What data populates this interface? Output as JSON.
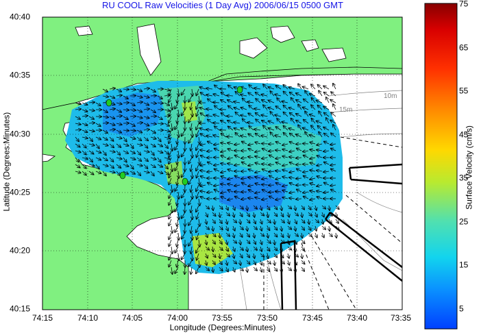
{
  "title": "RU COOL Raw Velocities (1 Day Avg) 2006/06/15 0500 GMT",
  "x_axis": {
    "label": "Longitude (Degrees:Minutes)",
    "ticks": [
      "74:15",
      "74:10",
      "74:05",
      "74:00",
      "73:55",
      "73:50",
      "73:45",
      "73:40",
      "73:35"
    ]
  },
  "y_axis": {
    "label": "Latitude (Degrees:Minutes)",
    "ticks": [
      "40:40",
      "40:35",
      "40:30",
      "40:25",
      "40:20",
      "40:15"
    ]
  },
  "colorbar": {
    "label": "Surface Velocity (cm/s)",
    "ticks": [
      "75",
      "65",
      "55",
      "45",
      "35",
      "25",
      "15",
      "5"
    ],
    "range": [
      0,
      75
    ]
  },
  "contour_labels": [
    "10m",
    "15m"
  ],
  "colors": {
    "land": "#80f080",
    "water": "#ffffff",
    "title": "#1414e6",
    "station": "#22cc22"
  }
}
